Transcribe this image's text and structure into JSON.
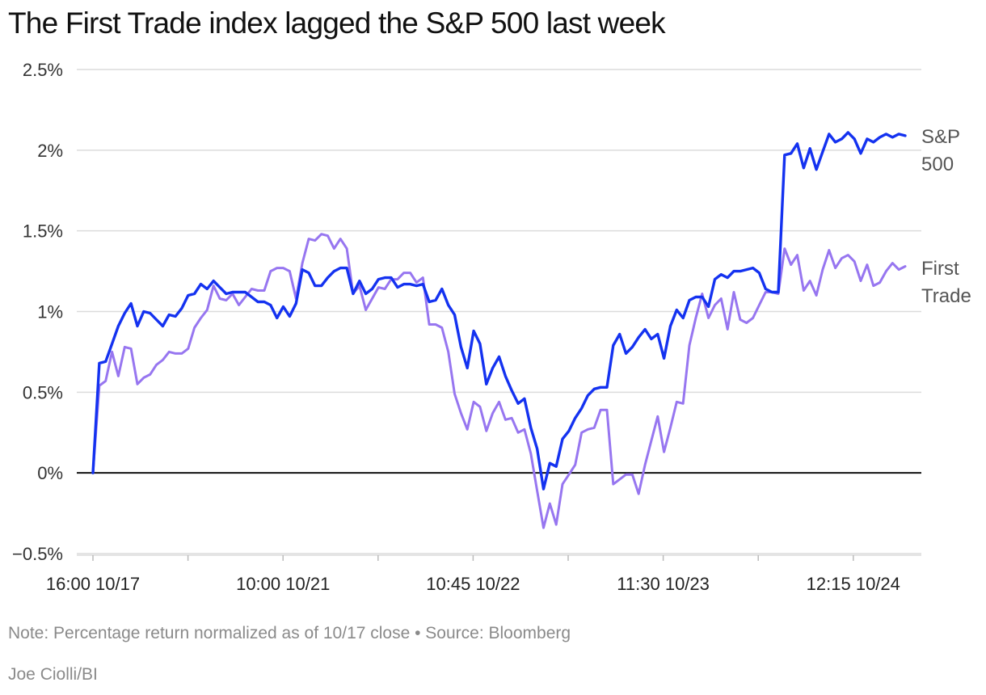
{
  "header": {
    "title": "The First Trade index lagged the S&P 500 last week"
  },
  "footer": {
    "note": "Note: Percentage return normalized as of 10/17 close • Source: Bloomberg",
    "credit": "Joe Ciolli/BI"
  },
  "chart_data": {
    "type": "line",
    "title": "The First Trade index lagged the S&P 500 last week",
    "xlabel": "",
    "ylabel": "",
    "ylim": [
      -0.5,
      2.5
    ],
    "y_ticks": [
      -0.5,
      0,
      0.5,
      1,
      1.5,
      2,
      2.5
    ],
    "y_tick_labels": [
      "−0.5%",
      "0%",
      "0.5%",
      "1%",
      "1.5%",
      "2%",
      "2.5%"
    ],
    "x_tick_labels": [
      "16:00 10/17",
      "10:00 10/21",
      "10:45 10/22",
      "11:30 10/23",
      "12:15 10/24"
    ],
    "zero_line": true,
    "grid": true,
    "legend": "inline-right",
    "series": [
      {
        "name": "S&P 500",
        "label_lines": [
          "S&P",
          "500"
        ],
        "color": "#1432f0",
        "values": [
          0.0,
          0.68,
          0.69,
          0.8,
          0.91,
          0.99,
          1.05,
          0.91,
          1.0,
          0.99,
          0.95,
          0.91,
          0.98,
          0.97,
          1.02,
          1.1,
          1.11,
          1.17,
          1.14,
          1.19,
          1.15,
          1.11,
          1.12,
          1.12,
          1.12,
          1.09,
          1.06,
          1.06,
          1.04,
          0.96,
          1.03,
          0.97,
          1.05,
          1.26,
          1.24,
          1.16,
          1.16,
          1.21,
          1.25,
          1.27,
          1.27,
          1.11,
          1.19,
          1.11,
          1.14,
          1.2,
          1.21,
          1.21,
          1.15,
          1.17,
          1.17,
          1.16,
          1.17,
          1.06,
          1.07,
          1.14,
          1.04,
          0.98,
          0.78,
          0.65,
          0.88,
          0.8,
          0.55,
          0.65,
          0.72,
          0.6,
          0.51,
          0.43,
          0.46,
          0.28,
          0.15,
          -0.1,
          0.06,
          0.04,
          0.21,
          0.26,
          0.34,
          0.4,
          0.48,
          0.52,
          0.53,
          0.53,
          0.79,
          0.86,
          0.74,
          0.78,
          0.84,
          0.89,
          0.83,
          0.86,
          0.71,
          0.91,
          1.01,
          0.96,
          1.07,
          1.09,
          1.09,
          1.03,
          1.2,
          1.23,
          1.21,
          1.25,
          1.25,
          1.26,
          1.27,
          1.24,
          1.14,
          1.12,
          1.12,
          1.97,
          1.98,
          2.04,
          1.89,
          2.01,
          1.88,
          1.99,
          2.1,
          2.05,
          2.07,
          2.11,
          2.07,
          1.98,
          2.07,
          2.05,
          2.08,
          2.1,
          2.08,
          2.1,
          2.09
        ]
      },
      {
        "name": "First Trade",
        "label_lines": [
          "First",
          "Trade"
        ],
        "color": "#9776f0",
        "values": [
          0.0,
          0.54,
          0.57,
          0.75,
          0.6,
          0.78,
          0.77,
          0.55,
          0.59,
          0.61,
          0.67,
          0.7,
          0.75,
          0.74,
          0.74,
          0.77,
          0.9,
          0.96,
          1.01,
          1.16,
          1.08,
          1.07,
          1.11,
          1.04,
          1.09,
          1.14,
          1.13,
          1.13,
          1.25,
          1.27,
          1.27,
          1.25,
          1.08,
          1.3,
          1.45,
          1.44,
          1.48,
          1.47,
          1.39,
          1.45,
          1.39,
          1.11,
          1.16,
          1.01,
          1.08,
          1.15,
          1.14,
          1.2,
          1.2,
          1.24,
          1.24,
          1.18,
          1.21,
          0.92,
          0.92,
          0.9,
          0.75,
          0.49,
          0.37,
          0.27,
          0.44,
          0.41,
          0.26,
          0.37,
          0.44,
          0.33,
          0.34,
          0.25,
          0.27,
          0.12,
          -0.11,
          -0.34,
          -0.19,
          -0.32,
          -0.07,
          -0.01,
          0.05,
          0.25,
          0.27,
          0.28,
          0.39,
          0.39,
          -0.07,
          -0.04,
          -0.01,
          -0.01,
          -0.13,
          0.05,
          0.2,
          0.35,
          0.13,
          0.28,
          0.44,
          0.43,
          0.79,
          0.96,
          1.11,
          0.96,
          1.04,
          1.08,
          0.89,
          1.12,
          0.95,
          0.93,
          0.96,
          1.04,
          1.12,
          1.12,
          1.11,
          1.39,
          1.29,
          1.35,
          1.13,
          1.19,
          1.1,
          1.26,
          1.38,
          1.27,
          1.33,
          1.35,
          1.31,
          1.19,
          1.29,
          1.16,
          1.18,
          1.25,
          1.3,
          1.26,
          1.28
        ]
      }
    ]
  }
}
